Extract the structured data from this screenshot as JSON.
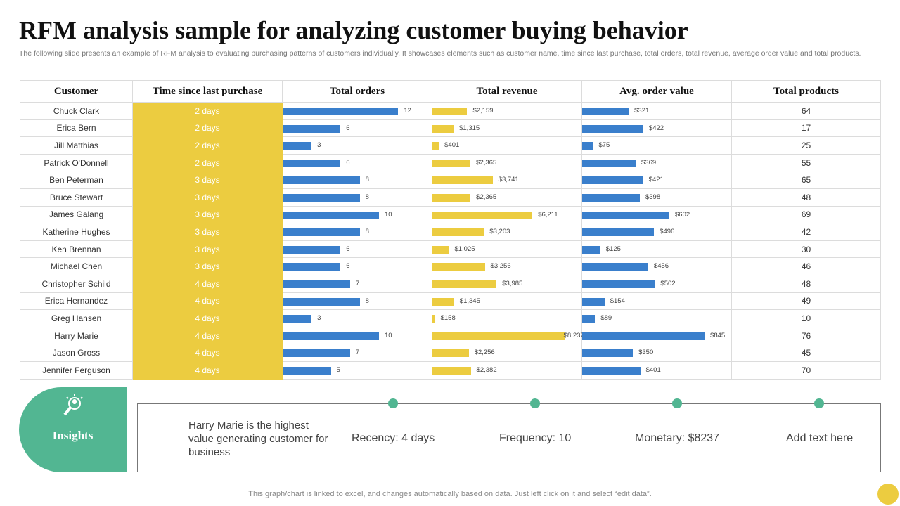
{
  "title": "RFM analysis sample for analyzing customer buying behavior",
  "subtitle": "The following slide presents an example of RFM analysis to evaluating purchasing patterns of customers individually. It showcases elements such as customer name, time since last purchase, total orders, total revenue, average order value and total products.",
  "colors": {
    "recency": "#eccc40",
    "orders": "#3a7fcc",
    "revenue": "#eccc40",
    "avg": "#3a7fcc",
    "insights": "#52b692"
  },
  "chart_data": {
    "type": "table",
    "columns": [
      "Customer",
      "Time since last purchase",
      "Total orders",
      "Total revenue",
      "Avg. order value",
      "Total products"
    ],
    "rows": [
      [
        "Chuck Clark",
        "2 days",
        12,
        "$2,159",
        "$321",
        64
      ],
      [
        "Erica Bern",
        "2 days",
        6,
        "$1,315",
        "$422",
        17
      ],
      [
        "Jill Matthias",
        "2 days",
        3,
        "$401",
        "$75",
        25
      ],
      [
        "Patrick O'Donnell",
        "2 days",
        6,
        "$2,365",
        "$369",
        55
      ],
      [
        "Ben Peterman",
        "3 days",
        8,
        "$3,741",
        "$421",
        65
      ],
      [
        "Bruce Stewart",
        "3 days",
        8,
        "$2,365",
        "$398",
        48
      ],
      [
        "James Galang",
        "3 days",
        10,
        "$6,211",
        "$602",
        69
      ],
      [
        "Katherine Hughes",
        "3 days",
        8,
        "$3,203",
        "$496",
        42
      ],
      [
        "Ken Brennan",
        "3 days",
        6,
        "$1,025",
        "$125",
        30
      ],
      [
        "Michael Chen",
        "3 days",
        6,
        "$3,256",
        "$456",
        46
      ],
      [
        "Christopher Schild",
        "4 days",
        7,
        "$3,985",
        "$502",
        48
      ],
      [
        "Erica Hernandez",
        "4 days",
        8,
        "$1,345",
        "$154",
        49
      ],
      [
        "Greg Hansen",
        "4 days",
        3,
        "$158",
        "$89",
        10
      ],
      [
        "Harry Marie",
        "4 days",
        10,
        "$8,237",
        "$845",
        76
      ],
      [
        "Jason Gross",
        "4 days",
        7,
        "$2,256",
        "$350",
        45
      ],
      [
        "Jennifer Ferguson",
        "4 days",
        5,
        "$2,382",
        "$401",
        70
      ]
    ]
  },
  "insights": {
    "label": "Insights",
    "icon": "lightbulb-magnifier-icon",
    "summary": "Harry Marie is the highest value generating customer for business",
    "items": [
      "Recency:  4 days",
      "Frequency:  10",
      "Monetary:  $8237",
      "Add text here"
    ]
  },
  "footer": "This graph/chart is linked to excel,  and changes automatically based on data. Just left click on it and select “edit data”."
}
